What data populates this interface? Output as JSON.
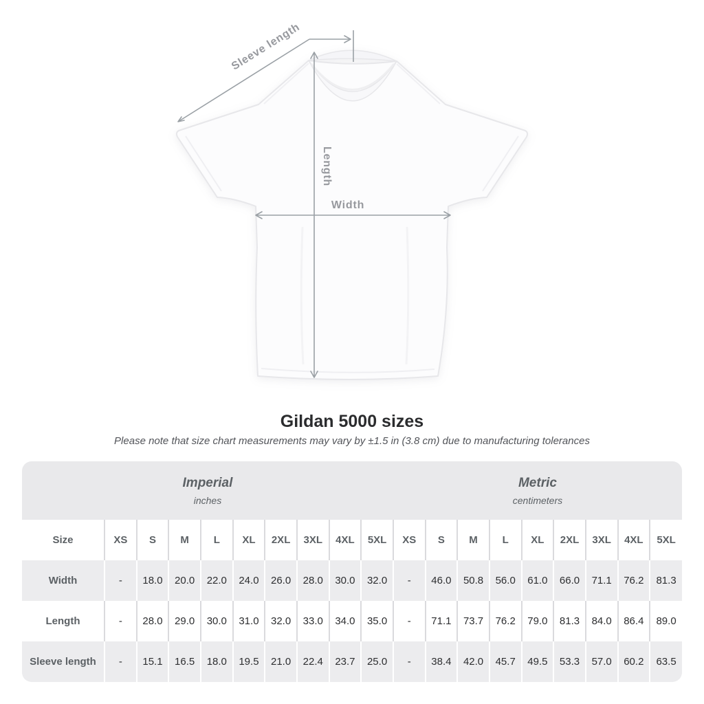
{
  "figure": {
    "labels": {
      "sleeve": "Sleeve length",
      "length": "Length",
      "width": "Width"
    }
  },
  "chart_data": {
    "type": "table",
    "title": "Gildan 5000 sizes",
    "note": "Please note that size chart measurements may vary by ±1.5 in (3.8 cm) due to manufacturing tolerances",
    "corner_label": "Size",
    "unit_groups": [
      {
        "name": "Imperial",
        "unit": "inches"
      },
      {
        "name": "Metric",
        "unit": "centimeters"
      }
    ],
    "sizes": [
      "XS",
      "S",
      "M",
      "L",
      "XL",
      "2XL",
      "3XL",
      "4XL",
      "5XL"
    ],
    "rows": [
      {
        "label": "Width",
        "imperial": [
          "-",
          "18.0",
          "20.0",
          "22.0",
          "24.0",
          "26.0",
          "28.0",
          "30.0",
          "32.0"
        ],
        "metric": [
          "-",
          "46.0",
          "50.8",
          "56.0",
          "61.0",
          "66.0",
          "71.1",
          "76.2",
          "81.3"
        ]
      },
      {
        "label": "Length",
        "imperial": [
          "-",
          "28.0",
          "29.0",
          "30.0",
          "31.0",
          "32.0",
          "33.0",
          "34.0",
          "35.0"
        ],
        "metric": [
          "-",
          "71.1",
          "73.7",
          "76.2",
          "79.0",
          "81.3",
          "84.0",
          "86.4",
          "89.0"
        ]
      },
      {
        "label": "Sleeve length",
        "imperial": [
          "-",
          "15.1",
          "16.5",
          "18.0",
          "19.5",
          "21.0",
          "22.4",
          "23.7",
          "25.0"
        ],
        "metric": [
          "-",
          "38.4",
          "42.0",
          "45.7",
          "49.5",
          "53.3",
          "57.0",
          "60.2",
          "63.5"
        ]
      }
    ],
    "colors": {
      "band-bg": "#e9e9eb",
      "row-alt-bg": "#ececee",
      "sep-on-white": "#dadadd",
      "sep-on-gray": "#ffffff",
      "label-text": "#5c6165",
      "value-text": "#2d2e30",
      "dim-line": "#9aa0a5",
      "dim-label": "#97999e",
      "title-text": "#2b2c2e",
      "note-text": "#515358"
    }
  }
}
